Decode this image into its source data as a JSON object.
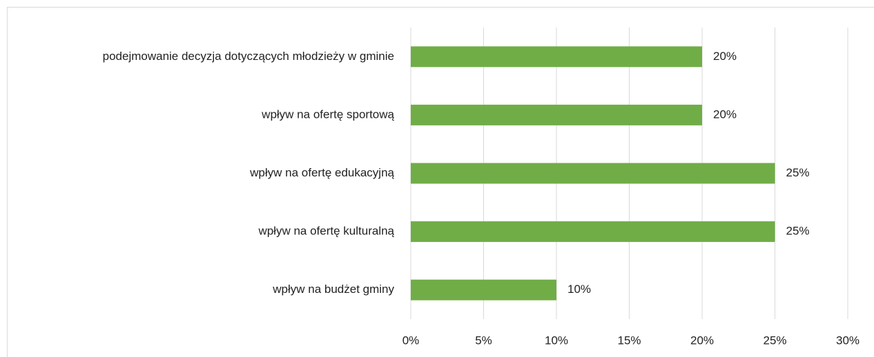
{
  "chart_data": {
    "type": "bar",
    "orientation": "horizontal",
    "categories": [
      "podejmowanie decyzja dotyczących młodzieży w gminie",
      "wpływ na ofertę sportową",
      "wpływ na ofertę edukacyjną",
      "wpływ na ofertę kulturalną",
      "wpływ na budżet gminy"
    ],
    "values": [
      20,
      20,
      25,
      25,
      10
    ],
    "value_labels": [
      "20%",
      "20%",
      "25%",
      "25%",
      "10%"
    ],
    "color": "#70ad47",
    "xlim": [
      0,
      30
    ],
    "xticks": [
      {
        "value": 0,
        "label": "0%"
      },
      {
        "value": 5,
        "label": "5%"
      },
      {
        "value": 10,
        "label": "10%"
      },
      {
        "value": 15,
        "label": "15%"
      },
      {
        "value": 20,
        "label": "20%"
      },
      {
        "value": 25,
        "label": "25%"
      },
      {
        "value": 30,
        "label": "30%"
      }
    ],
    "grid": true
  }
}
